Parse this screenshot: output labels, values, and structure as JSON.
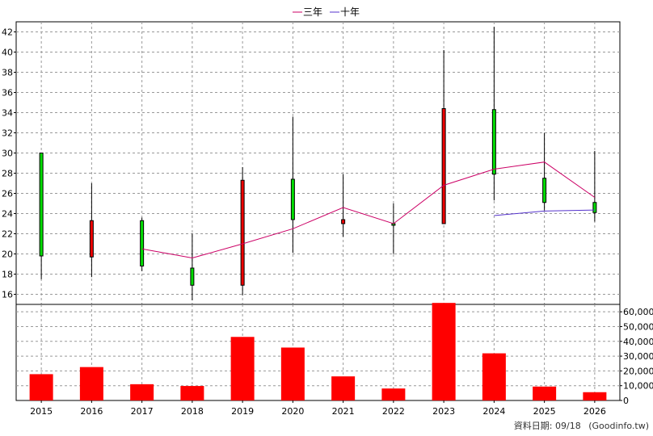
{
  "chart_data": {
    "type": "candlestick-with-volume",
    "legend": [
      {
        "name": "三年",
        "color": "#cc0066"
      },
      {
        "name": "十年",
        "color": "#5533cc"
      }
    ],
    "categories": [
      "2015",
      "2016",
      "2017",
      "2018",
      "2019",
      "2020",
      "2021",
      "2022",
      "2023",
      "2024",
      "2025",
      "2026"
    ],
    "price_axis": {
      "ylim": [
        15,
        43
      ],
      "ticks": [
        16,
        18,
        20,
        22,
        24,
        26,
        28,
        30,
        32,
        34,
        36,
        38,
        40,
        42
      ]
    },
    "candles": [
      {
        "year": "2015",
        "open": 19.8,
        "close": 30.0,
        "high": 30.0,
        "low": 17.5
      },
      {
        "year": "2016",
        "open": 23.3,
        "close": 19.7,
        "high": 27.0,
        "low": 17.7
      },
      {
        "year": "2017",
        "open": 18.8,
        "close": 23.3,
        "high": 23.6,
        "low": 18.3
      },
      {
        "year": "2018",
        "open": 16.9,
        "close": 18.6,
        "high": 22.0,
        "low": 15.4
      },
      {
        "year": "2019",
        "open": 27.3,
        "close": 16.9,
        "high": 28.6,
        "low": 15.9
      },
      {
        "year": "2020",
        "open": 23.4,
        "close": 27.4,
        "high": 33.6,
        "low": 20.1
      },
      {
        "year": "2021",
        "open": 23.4,
        "close": 23.0,
        "high": 27.9,
        "low": 21.7
      },
      {
        "year": "2022",
        "open": 23.0,
        "close": 23.0,
        "high": 25.0,
        "low": 20.0
      },
      {
        "year": "2023",
        "open": 34.4,
        "close": 23.0,
        "high": 40.2,
        "low": 23.0
      },
      {
        "year": "2024",
        "open": 27.9,
        "close": 34.3,
        "high": 42.5,
        "low": 25.3
      },
      {
        "year": "2025",
        "open": 25.1,
        "close": 27.5,
        "high": 32.0,
        "low": 24.3
      },
      {
        "year": "2026",
        "open": 24.1,
        "close": 25.1,
        "high": 30.2,
        "low": 23.2
      }
    ],
    "series": [
      {
        "name": "三年",
        "color": "#cc0066",
        "values": [
          null,
          null,
          20.5,
          19.6,
          21.0,
          22.5,
          24.6,
          23.0,
          26.8,
          28.4,
          29.1,
          25.6
        ]
      },
      {
        "name": "十年",
        "color": "#5533cc",
        "values": [
          null,
          null,
          null,
          null,
          null,
          null,
          null,
          null,
          null,
          23.8,
          24.25,
          24.35
        ]
      }
    ],
    "volume_axis": {
      "ylim": [
        0,
        65000
      ],
      "ticks": [
        "0",
        "10,000",
        "20,000",
        "30,000",
        "40,000",
        "50,000",
        "60,000"
      ]
    },
    "volume": [
      17800,
      22600,
      11000,
      9800,
      43000,
      35800,
      16300,
      8100,
      66000,
      31900,
      9400,
      5600
    ]
  },
  "footer": {
    "date_label": "資料日期: 09/18",
    "source": "(Goodinfo.tw)"
  }
}
